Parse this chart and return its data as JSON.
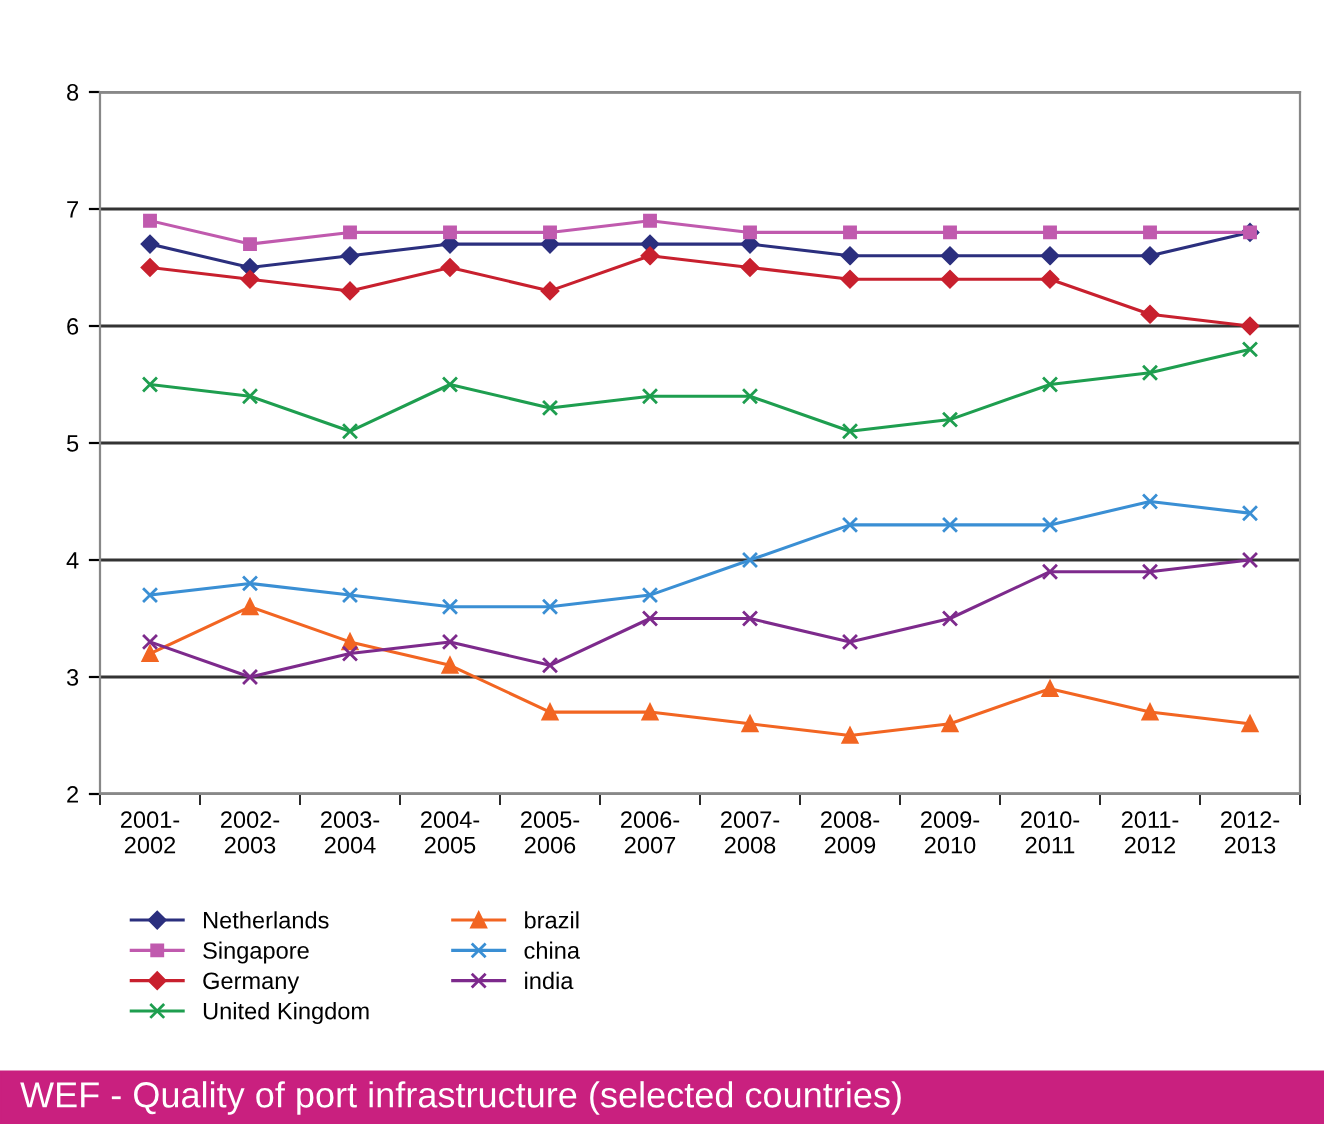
{
  "chart_data": {
    "type": "line",
    "title": "WEF - Quality of port infrastructure (selected countries)",
    "categories": [
      "2001-\n2002",
      "2002-\n2003",
      "2003-\n2004",
      "2004-\n2005",
      "2005-\n2006",
      "2006-\n2007",
      "2007-\n2008",
      "2008-\n2009",
      "2009-\n2010",
      "2010-\n2011",
      "2011-\n2012",
      "2012-\n2013"
    ],
    "series": [
      {
        "name": "Netherlands",
        "color": "#2b2f7e",
        "marker": "diamond",
        "values": [
          6.7,
          6.5,
          6.6,
          6.7,
          6.7,
          6.7,
          6.7,
          6.6,
          6.6,
          6.6,
          6.6,
          6.8
        ]
      },
      {
        "name": "Singapore",
        "color": "#c05aae",
        "marker": "square",
        "values": [
          6.9,
          6.7,
          6.8,
          6.8,
          6.8,
          6.9,
          6.8,
          6.8,
          6.8,
          6.8,
          6.8,
          6.8
        ]
      },
      {
        "name": "Germany",
        "color": "#c8202e",
        "marker": "diamond",
        "values": [
          6.5,
          6.4,
          6.3,
          6.5,
          6.3,
          6.6,
          6.5,
          6.4,
          6.4,
          6.4,
          6.1,
          6.0
        ]
      },
      {
        "name": "United Kingdom",
        "color": "#1e9e4f",
        "marker": "cross",
        "values": [
          5.5,
          5.4,
          5.1,
          5.5,
          5.3,
          5.4,
          5.4,
          5.1,
          5.2,
          5.5,
          5.6,
          5.8
        ]
      },
      {
        "name": "brazil",
        "color": "#f26522",
        "marker": "triangle",
        "values": [
          3.2,
          3.6,
          3.3,
          3.1,
          2.7,
          2.7,
          2.6,
          2.5,
          2.6,
          2.9,
          2.7,
          2.6
        ]
      },
      {
        "name": "china",
        "color": "#3a8fd4",
        "marker": "cross",
        "values": [
          3.7,
          3.8,
          3.7,
          3.6,
          3.6,
          3.7,
          4.0,
          4.3,
          4.3,
          4.3,
          4.5,
          4.4
        ]
      },
      {
        "name": "india",
        "color": "#7d2a8c",
        "marker": "cross",
        "values": [
          3.3,
          3.0,
          3.2,
          3.3,
          3.1,
          3.5,
          3.5,
          3.3,
          3.5,
          3.9,
          3.9,
          4.0
        ]
      }
    ],
    "ylim": [
      2,
      8
    ],
    "yticks": [
      2,
      3,
      4,
      5,
      6,
      7,
      8
    ],
    "grid": "y",
    "legend": "bottom left"
  }
}
